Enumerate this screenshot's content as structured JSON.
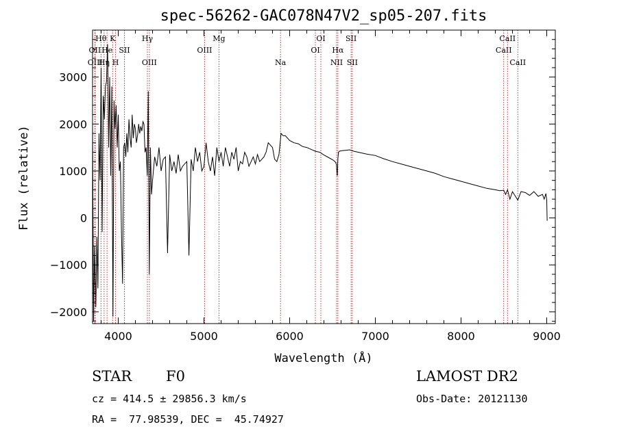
{
  "chart_data": {
    "type": "line",
    "title": "spec-56262-GAC078N47V2_sp05-207.fits",
    "xlabel": "Wavelength (Å)",
    "ylabel": "Flux (relative)",
    "xlim": [
      3700,
      9100
    ],
    "ylim": [
      -2250,
      4000
    ],
    "x_ticks": [
      {
        "value": 4000,
        "label": "4000"
      },
      {
        "value": 5000,
        "label": "5000"
      },
      {
        "value": 6000,
        "label": "6000"
      },
      {
        "value": 7000,
        "label": "7000"
      },
      {
        "value": 8000,
        "label": "8000"
      },
      {
        "value": 9000,
        "label": "9000"
      }
    ],
    "y_ticks": [
      {
        "value": -2000,
        "label": "−2000"
      },
      {
        "value": -1000,
        "label": "−1000"
      },
      {
        "value": 0,
        "label": "0"
      },
      {
        "value": 1000,
        "label": "1000"
      },
      {
        "value": 2000,
        "label": "2000"
      },
      {
        "value": 3000,
        "label": "3000"
      }
    ],
    "lines": [
      {
        "x": 3727,
        "label": "OII",
        "row": 1
      },
      {
        "x": 3730,
        "label": "OIII",
        "row": 2
      },
      {
        "x": 3798,
        "label": "Hθ",
        "row": 0
      },
      {
        "x": 3835,
        "label": "Hη",
        "row": 2
      },
      {
        "x": 3869,
        "label": "He",
        "row": 1
      },
      {
        "x": 3934,
        "label": "K",
        "row": 0
      },
      {
        "x": 3968,
        "label": "H",
        "row": 2
      },
      {
        "x": 4072,
        "label": "SII",
        "row": 1
      },
      {
        "x": 4340,
        "label": "Hγ",
        "row": 0
      },
      {
        "x": 4363,
        "label": "OIII",
        "row": 2
      },
      {
        "x": 5007,
        "label": "OIII",
        "row": 1
      },
      {
        "x": 5175,
        "label": "Mg",
        "row": 0
      },
      {
        "x": 5893,
        "label": "Na",
        "row": 2
      },
      {
        "x": 6300,
        "label": "OI",
        "row": 1
      },
      {
        "x": 6364,
        "label": "OI",
        "row": 0
      },
      {
        "x": 6548,
        "label": "NII",
        "row": 2
      },
      {
        "x": 6563,
        "label": "Hα",
        "row": 1
      },
      {
        "x": 6717,
        "label": "SII",
        "row": 0
      },
      {
        "x": 6731,
        "label": "SII",
        "row": 2
      },
      {
        "x": 8498,
        "label": "CaII",
        "row": 1
      },
      {
        "x": 8542,
        "label": "CaII",
        "row": 0
      },
      {
        "x": 8662,
        "label": "CaII",
        "row": 2
      }
    ],
    "series": [
      {
        "color": "#000000",
        "x": [
          3700,
          3712,
          3725,
          3738,
          3750,
          3762,
          3775,
          3788,
          3800,
          3812,
          3825,
          3838,
          3850,
          3862,
          3875,
          3888,
          3900,
          3912,
          3925,
          3938,
          3950,
          3962,
          3975,
          3988,
          4000,
          4012,
          4025,
          4038,
          4050,
          4062,
          4075,
          4088,
          4100,
          4112,
          4125,
          4138,
          4150,
          4162,
          4175,
          4188,
          4200,
          4212,
          4225,
          4238,
          4250,
          4262,
          4275,
          4288,
          4300,
          4312,
          4325,
          4338,
          4350,
          4362,
          4375,
          4388,
          4400,
          4425,
          4450,
          4475,
          4500,
          4525,
          4550,
          4575,
          4600,
          4625,
          4650,
          4675,
          4700,
          4725,
          4750,
          4775,
          4800,
          4825,
          4850,
          4875,
          4900,
          4925,
          4950,
          4975,
          5000,
          5025,
          5050,
          5075,
          5100,
          5125,
          5150,
          5175,
          5200,
          5225,
          5250,
          5275,
          5300,
          5325,
          5350,
          5375,
          5400,
          5425,
          5450,
          5475,
          5500,
          5525,
          5550,
          5575,
          5600,
          5625,
          5650,
          5675,
          5700,
          5725,
          5750,
          5775,
          5800,
          5825,
          5850,
          5875,
          5900,
          5925,
          5950,
          5975,
          6000,
          6050,
          6100,
          6150,
          6200,
          6250,
          6300,
          6350,
          6400,
          6450,
          6500,
          6530,
          6545,
          6555,
          6563,
          6570,
          6580,
          6600,
          6650,
          6700,
          6750,
          6800,
          6900,
          7000,
          7100,
          7200,
          7300,
          7400,
          7500,
          7600,
          7700,
          7800,
          7900,
          8000,
          8100,
          8200,
          8300,
          8400,
          8450,
          8498,
          8520,
          8542,
          8570,
          8600,
          8662,
          8700,
          8750,
          8800,
          8850,
          8900,
          8950,
          8970,
          8990,
          9000,
          9005,
          9010
        ],
        "y": [
          2000,
          -2200,
          -600,
          -1900,
          -400,
          -1500,
          1800,
          800,
          3200,
          -300,
          2600,
          2100,
          2800,
          2900,
          3700,
          1500,
          3000,
          900,
          2800,
          -2100,
          2500,
          1900,
          2400,
          1500,
          2200,
          1000,
          1200,
          -400,
          -1400,
          1500,
          1600,
          1300,
          1800,
          1400,
          2100,
          1700,
          1500,
          2200,
          1700,
          2000,
          1900,
          1600,
          1750,
          2000,
          1800,
          1950,
          1850,
          2050,
          2000,
          1400,
          1500,
          900,
          2700,
          -1200,
          1500,
          500,
          800,
          1300,
          1100,
          1500,
          1000,
          1250,
          1300,
          -750,
          1350,
          1000,
          1200,
          950,
          1350,
          1000,
          1100,
          1150,
          1200,
          -800,
          1250,
          1000,
          1500,
          1200,
          1400,
          1000,
          1100,
          1600,
          1200,
          1000,
          1300,
          900,
          1500,
          1200,
          1400,
          1100,
          1500,
          1300,
          1100,
          1400,
          1250,
          1500,
          1000,
          1200,
          1150,
          1400,
          1300,
          1100,
          1200,
          1300,
          1150,
          1350,
          1200,
          1250,
          1300,
          1400,
          1600,
          1550,
          1500,
          1250,
          1200,
          1350,
          1800,
          1750,
          1750,
          1700,
          1650,
          1600,
          1580,
          1520,
          1500,
          1460,
          1420,
          1400,
          1340,
          1290,
          1240,
          1200,
          1150,
          900,
          1270,
          1400,
          1420,
          1430,
          1440,
          1450,
          1420,
          1400,
          1360,
          1330,
          1260,
          1200,
          1150,
          1100,
          1050,
          1000,
          950,
          880,
          830,
          780,
          730,
          680,
          630,
          600,
          580,
          590,
          500,
          600,
          400,
          560,
          380,
          560,
          540,
          480,
          560,
          460,
          500,
          400,
          520,
          380,
          -50,
          -50
        ]
      }
    ]
  },
  "info": {
    "object_class": "STAR",
    "subclass": "F0",
    "survey": "LAMOST DR2",
    "velocity": "cz = 414.5 ± 29856.3 km/s",
    "obs_date": "Obs-Date: 20121130",
    "coords": "RA =  77.98539, DEC =  45.74927"
  }
}
